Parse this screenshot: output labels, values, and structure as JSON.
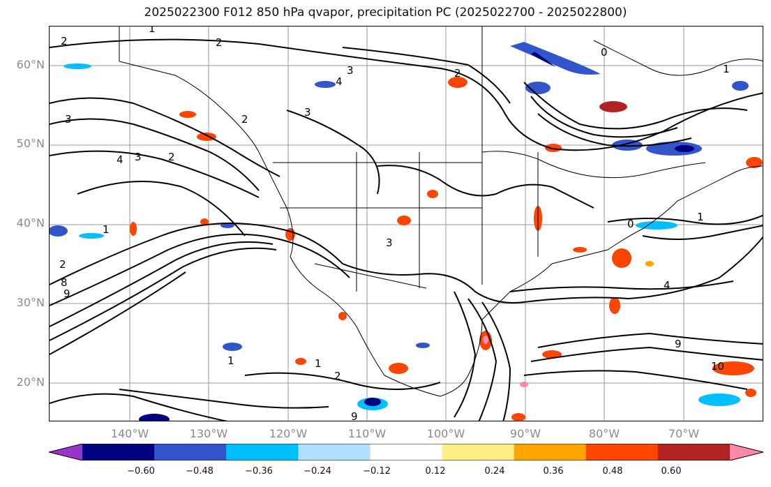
{
  "title": "2025022300 F012 850 hPa qvapor, precipitation PC (2025022700 - 2025022800)",
  "lat_labels": [
    "60°N",
    "50°N",
    "40°N",
    "30°N",
    "20°N"
  ],
  "lon_labels": [
    "140°W",
    "130°W",
    "120°W",
    "110°W",
    "100°W",
    "90°W",
    "80°W",
    "70°W"
  ],
  "contour_labels": [
    "2",
    "1",
    "2",
    "3",
    "4",
    "2",
    "0",
    "1",
    "3",
    "3",
    "2",
    "4",
    "3",
    "2",
    "1",
    "2",
    "8",
    "9",
    "1",
    "4",
    "9",
    "10",
    "0",
    "1",
    "2",
    "1",
    "9",
    "3"
  ],
  "colorbar": {
    "colors": [
      "#9933cc",
      "#000080",
      "#3355cc",
      "#00bfff",
      "#b0e0ff",
      "#ffffff",
      "#ffee88",
      "#ffa500",
      "#ff4500",
      "#b22222",
      "#ff88aa"
    ],
    "tick_labels": [
      "−0.60",
      "−0.48",
      "−0.36",
      "−0.24",
      "−0.12",
      "0.12",
      "0.24",
      "0.36",
      "0.48",
      "0.60"
    ]
  }
}
